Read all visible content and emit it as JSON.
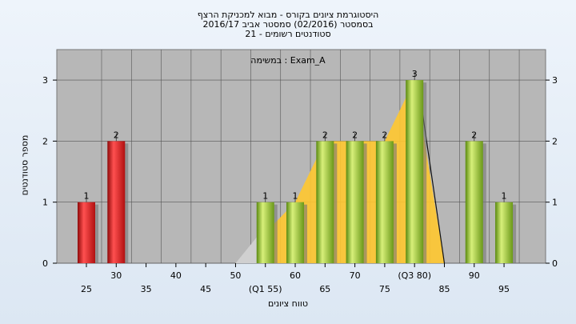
{
  "chart_data": {
    "type": "bar",
    "title": "היסטוגרמת ציונים בקורס - מבוא למכניקת הרצף",
    "subtitle": "בסמסטר  (02/2016)  סמסטר אביב 2016/17",
    "subtitle2": "סטודנטים רשומים - 21",
    "annotation": "במשימה : Exam_A",
    "xlabel": "טווח ציונים",
    "ylabel": "מספר סטודנטים",
    "ylim": [
      0,
      3.5
    ],
    "y_ticks": [
      "0",
      "1",
      "2",
      "3"
    ],
    "x_tick_labels": [
      "25",
      "30",
      "35",
      "40",
      "45",
      "50",
      "(Q1 55)",
      "60",
      "65",
      "70",
      "75",
      "(Q3 80)",
      "85",
      "90",
      "95"
    ],
    "bars": [
      {
        "x": 25,
        "value": 1,
        "label": "1",
        "color": "red"
      },
      {
        "x": 30,
        "value": 2,
        "label": "2",
        "color": "red"
      },
      {
        "x": 55,
        "value": 1,
        "label": "1",
        "color": "green"
      },
      {
        "x": 60,
        "value": 1,
        "label": "1",
        "color": "green"
      },
      {
        "x": 65,
        "value": 2,
        "label": "2",
        "color": "green"
      },
      {
        "x": 70,
        "value": 2,
        "label": "2",
        "color": "green"
      },
      {
        "x": 75,
        "value": 2,
        "label": "2",
        "color": "green"
      },
      {
        "x": 80,
        "value": 3,
        "label": "3",
        "color": "green"
      },
      {
        "x": 90,
        "value": 2,
        "label": "2",
        "color": "green"
      },
      {
        "x": 95,
        "value": 1,
        "label": "1",
        "color": "green"
      }
    ],
    "band_x": [
      50,
      55,
      60,
      65,
      70,
      75,
      80,
      85
    ],
    "band_y": [
      0,
      0.5,
      1,
      2,
      2,
      2,
      3,
      0
    ],
    "grid": true,
    "colors": {
      "red": "#e02020",
      "green": "#8fc030",
      "band": "#ffc830",
      "plot_bg": "#b7b7b7"
    }
  }
}
